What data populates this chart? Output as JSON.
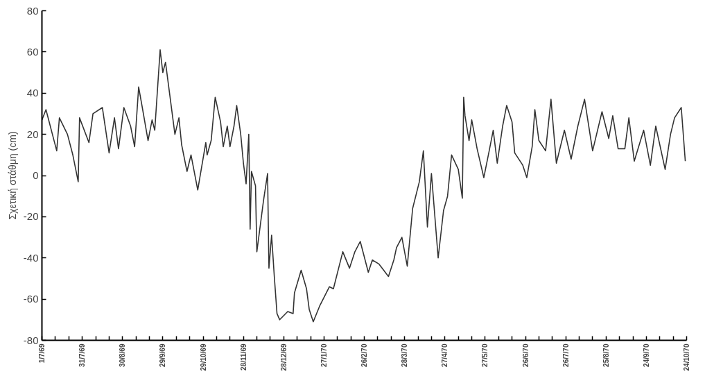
{
  "chart_data": {
    "type": "line",
    "ylabel": "Σχετική στάθμη (cm)",
    "color": "#333333",
    "grid": false,
    "marker": "none",
    "line_style": "solid",
    "xlim": [
      "1969-07-01",
      "1970-10-24"
    ],
    "ylim": [
      -80,
      80
    ],
    "yticks": [
      -80,
      -60,
      -40,
      -20,
      0,
      20,
      40,
      60,
      80
    ],
    "xticks": [
      {
        "value": "1969-07-01",
        "label": "1/7/69"
      },
      {
        "value": "1969-07-11",
        "label": null
      },
      {
        "value": "1969-07-21",
        "label": null
      },
      {
        "value": "1969-07-31",
        "label": "31/7/69"
      },
      {
        "value": "1969-08-10",
        "label": null
      },
      {
        "value": "1969-08-20",
        "label": null
      },
      {
        "value": "1969-08-30",
        "label": "30/8/69"
      },
      {
        "value": "1969-09-09",
        "label": null
      },
      {
        "value": "1969-09-19",
        "label": null
      },
      {
        "value": "1969-09-29",
        "label": "29/9/69"
      },
      {
        "value": "1969-10-09",
        "label": null
      },
      {
        "value": "1969-10-19",
        "label": null
      },
      {
        "value": "1969-10-29",
        "label": "29/10/69"
      },
      {
        "value": "1969-11-08",
        "label": null
      },
      {
        "value": "1969-11-18",
        "label": null
      },
      {
        "value": "1969-11-28",
        "label": "28/11/69"
      },
      {
        "value": "1969-12-08",
        "label": null
      },
      {
        "value": "1969-12-18",
        "label": null
      },
      {
        "value": "1969-12-28",
        "label": "28/12/69"
      },
      {
        "value": "1970-01-07",
        "label": null
      },
      {
        "value": "1970-01-17",
        "label": null
      },
      {
        "value": "1970-01-27",
        "label": "27/1/70"
      },
      {
        "value": "1970-02-06",
        "label": null
      },
      {
        "value": "1970-02-16",
        "label": null
      },
      {
        "value": "1970-02-26",
        "label": "26/2/70"
      },
      {
        "value": "1970-03-08",
        "label": null
      },
      {
        "value": "1970-03-18",
        "label": null
      },
      {
        "value": "1970-03-28",
        "label": "28/3/70"
      },
      {
        "value": "1970-04-07",
        "label": null
      },
      {
        "value": "1970-04-17",
        "label": null
      },
      {
        "value": "1970-04-27",
        "label": "27/4/70"
      },
      {
        "value": "1970-05-07",
        "label": null
      },
      {
        "value": "1970-05-17",
        "label": null
      },
      {
        "value": "1970-05-27",
        "label": "27/5/70"
      },
      {
        "value": "1970-06-06",
        "label": null
      },
      {
        "value": "1970-06-16",
        "label": null
      },
      {
        "value": "1970-06-26",
        "label": "26/6/70"
      },
      {
        "value": "1970-07-06",
        "label": null
      },
      {
        "value": "1970-07-16",
        "label": null
      },
      {
        "value": "1970-07-26",
        "label": "26/7/70"
      },
      {
        "value": "1970-08-05",
        "label": null
      },
      {
        "value": "1970-08-15",
        "label": null
      },
      {
        "value": "1970-08-25",
        "label": "25/8/70"
      },
      {
        "value": "1970-09-04",
        "label": null
      },
      {
        "value": "1970-09-14",
        "label": null
      },
      {
        "value": "1970-09-24",
        "label": "24/9/70"
      },
      {
        "value": "1970-10-04",
        "label": null
      },
      {
        "value": "1970-10-14",
        "label": null
      },
      {
        "value": "1970-10-24",
        "label": "24/10/70"
      }
    ],
    "x": [
      "1969-07-01",
      "1969-07-04",
      "1969-07-12",
      "1969-07-14",
      "1969-07-20",
      "1969-07-24",
      "1969-07-28",
      "1969-07-29",
      "1969-08-05",
      "1969-08-08",
      "1969-08-15",
      "1969-08-20",
      "1969-08-24",
      "1969-08-27",
      "1969-08-31",
      "1969-09-05",
      "1969-09-08",
      "1969-09-11",
      "1969-09-14",
      "1969-09-18",
      "1969-09-21",
      "1969-09-23",
      "1969-09-27",
      "1969-09-29",
      "1969-10-01",
      "1969-10-08",
      "1969-10-11",
      "1969-10-13",
      "1969-10-17",
      "1969-10-20",
      "1969-10-25",
      "1969-10-31",
      "1969-11-01",
      "1969-11-04",
      "1969-11-07",
      "1969-11-11",
      "1969-11-13",
      "1969-11-16",
      "1969-11-18",
      "1969-11-21",
      "1969-11-23",
      "1969-11-26",
      "1969-11-28",
      "1969-11-30",
      "1969-12-02",
      "1969-12-03",
      "1969-12-04",
      "1969-12-07",
      "1969-12-08",
      "1969-12-13",
      "1969-12-16",
      "1969-12-17",
      "1969-12-19",
      "1969-12-21",
      "1969-12-23",
      "1969-12-25",
      "1969-12-31",
      "1970-01-04",
      "1970-01-05",
      "1970-01-10",
      "1970-01-14",
      "1970-01-16",
      "1970-01-19",
      "1970-01-24",
      "1970-01-31",
      "1970-02-03",
      "1970-02-10",
      "1970-02-15",
      "1970-02-19",
      "1970-02-23",
      "1970-03-01",
      "1970-03-04",
      "1970-03-09",
      "1970-03-16",
      "1970-03-20",
      "1970-03-22",
      "1970-03-26",
      "1970-03-30",
      "1970-04-03",
      "1970-04-08",
      "1970-04-11",
      "1970-04-14",
      "1970-04-17",
      "1970-04-22",
      "1970-04-26",
      "1970-04-29",
      "1970-05-02",
      "1970-05-07",
      "1970-05-10",
      "1970-05-11",
      "1970-05-12",
      "1970-05-15",
      "1970-05-17",
      "1970-05-21",
      "1970-05-26",
      "1970-05-30",
      "1970-06-02",
      "1970-06-05",
      "1970-06-09",
      "1970-06-12",
      "1970-06-16",
      "1970-06-18",
      "1970-06-24",
      "1970-06-27",
      "1970-07-01",
      "1970-07-03",
      "1970-07-06",
      "1970-07-11",
      "1970-07-15",
      "1970-07-19",
      "1970-07-25",
      "1970-07-30",
      "1970-08-04",
      "1970-08-09",
      "1970-08-15",
      "1970-08-22",
      "1970-08-27",
      "1970-08-30",
      "1970-09-03",
      "1970-09-08",
      "1970-09-11",
      "1970-09-15",
      "1970-09-22",
      "1970-09-27",
      "1970-10-01",
      "1970-10-08",
      "1970-10-12",
      "1970-10-15",
      "1970-10-20",
      "1970-10-23"
    ],
    "values": [
      27,
      32,
      12,
      28,
      20,
      10,
      -3,
      28,
      16,
      30,
      33,
      11,
      28,
      13,
      33,
      24,
      14,
      43,
      32,
      17,
      27,
      22,
      61,
      50,
      55,
      20,
      28,
      15,
      2,
      10,
      -7,
      16,
      10,
      17,
      38,
      26,
      14,
      24,
      14,
      24,
      34,
      20,
      6,
      -4,
      20,
      -26,
      2,
      -5,
      -37,
      -12,
      1,
      -45,
      -29,
      -49,
      -67,
      -70,
      -66,
      -67,
      -57,
      -46,
      -55,
      -65,
      -71,
      -63,
      -54,
      -55,
      -37,
      -45,
      -37,
      -32,
      -47,
      -41,
      -43,
      -49,
      -41,
      -35,
      -30,
      -44,
      -16,
      -3,
      12,
      -25,
      1,
      -40,
      -17,
      -10,
      10,
      3,
      -11,
      38,
      29,
      17,
      27,
      13,
      -1,
      12,
      22,
      6,
      24,
      34,
      26,
      11,
      5,
      -1,
      14,
      32,
      17,
      12,
      37,
      6,
      22,
      8,
      24,
      37,
      12,
      31,
      18,
      29,
      13,
      13,
      28,
      7,
      22,
      5,
      24,
      3,
      20,
      28,
      33,
      7
    ]
  }
}
